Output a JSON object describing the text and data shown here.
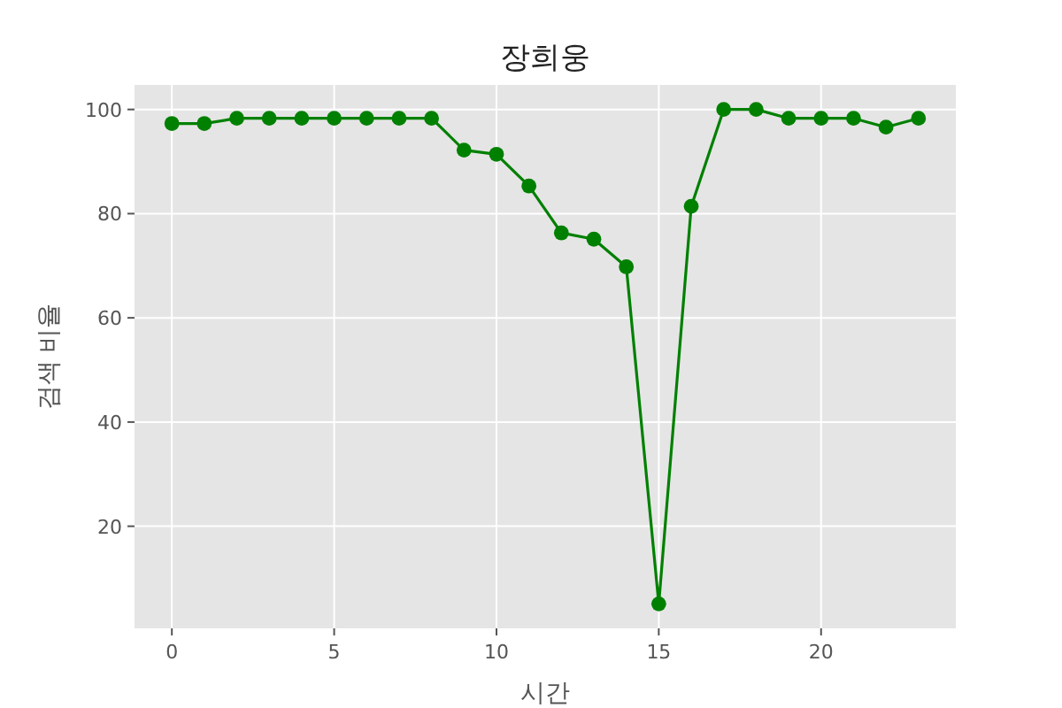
{
  "chart_data": {
    "type": "line",
    "title": "장희웅",
    "xlabel": "시간",
    "ylabel": "검색 비율",
    "x": [
      0,
      1,
      2,
      3,
      4,
      5,
      6,
      7,
      8,
      9,
      10,
      11,
      12,
      13,
      14,
      15,
      16,
      17,
      18,
      19,
      20,
      21,
      22,
      23
    ],
    "series": [
      {
        "color": "#008000",
        "values": [
          97.3,
          97.3,
          98.3,
          98.3,
          98.3,
          98.3,
          98.3,
          98.3,
          98.3,
          92.2,
          91.4,
          85.3,
          76.3,
          75.1,
          69.8,
          5.1,
          81.4,
          100,
          100,
          98.3,
          98.3,
          98.3,
          96.6,
          98.3
        ]
      }
    ],
    "xlim": [
      -1.15,
      24.15
    ],
    "ylim": [
      0.4,
      104.7
    ],
    "xticks": [
      0,
      5,
      10,
      15,
      20
    ],
    "yticks": [
      20,
      40,
      60,
      80,
      100
    ],
    "grid": true,
    "marker": "circle",
    "line_style": "solid"
  }
}
